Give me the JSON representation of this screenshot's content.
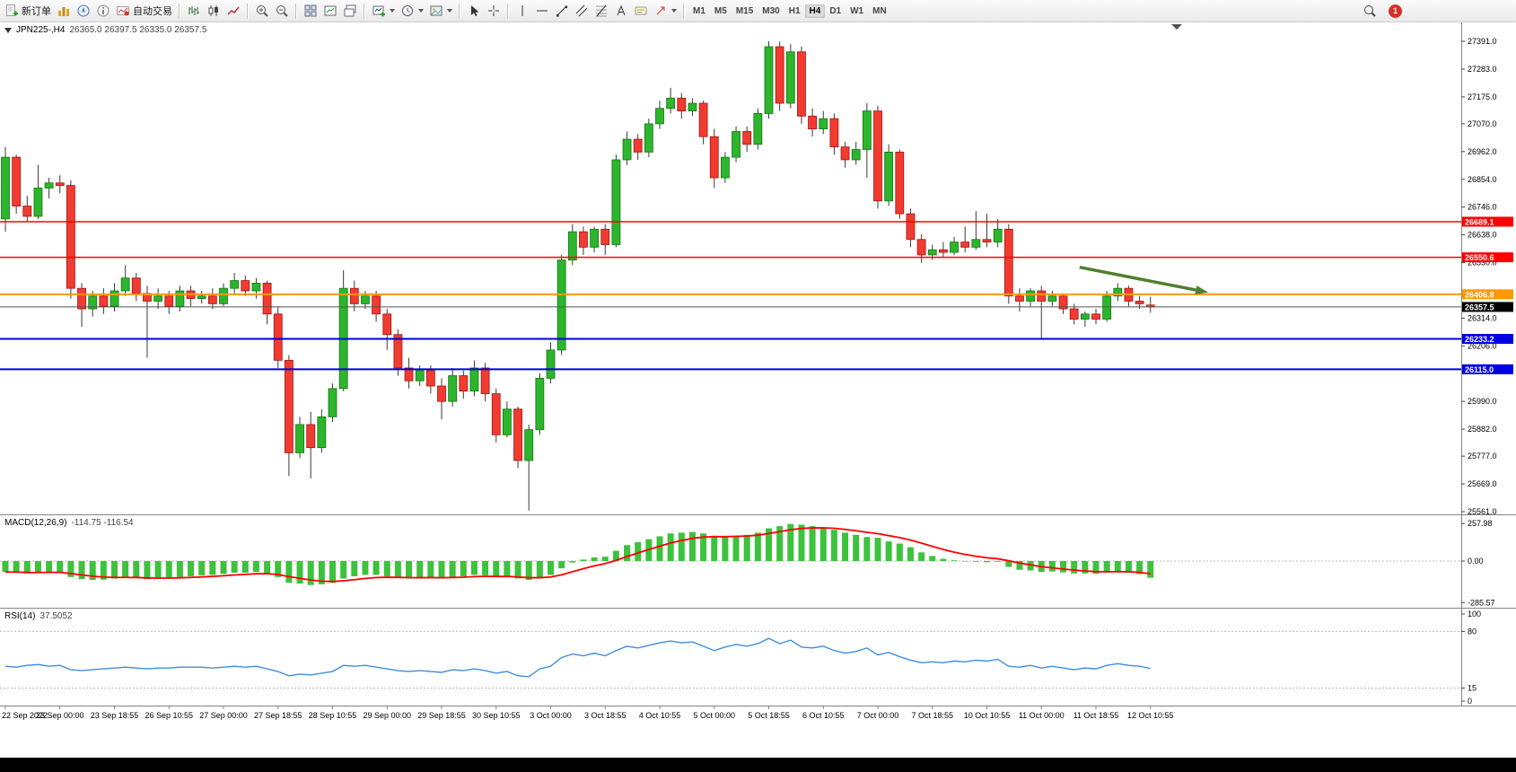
{
  "toolbar": {
    "new_order": {
      "label": "新订单"
    },
    "autotrade": {
      "label": "自动交易"
    },
    "timeframes": [
      "M1",
      "M5",
      "M15",
      "M30",
      "H1",
      "H4",
      "D1",
      "W1",
      "MN"
    ],
    "active_timeframe": "H4",
    "notification_count": "1"
  },
  "chart": {
    "symbol_period": "JPN225-,H4",
    "ohlc_text": "26365.0 26397.5 26335.0 26357.5"
  },
  "chart_data": {
    "type": "candlestick",
    "symbol": "JPN225-",
    "timeframe": "H4",
    "current": {
      "open": 26365.0,
      "high": 26397.5,
      "low": 26335.0,
      "close": 26357.5
    },
    "y_ticks": [
      "27391.0",
      "27283.0",
      "27175.0",
      "27070.0",
      "26962.0",
      "26854.0",
      "26746.0",
      "26638.0",
      "26530.0",
      "26314.0",
      "26206.0",
      "25990.0",
      "25882.0",
      "25777.0",
      "25669.0",
      "25561.0"
    ],
    "x_labels": [
      "22 Sep 2022",
      "23 Sep 00:00",
      "23 Sep 18:55",
      "26 Sep 10:55",
      "27 Sep 00:00",
      "27 Sep 18:55",
      "28 Sep 10:55",
      "29 Sep 00:00",
      "29 Sep 18:55",
      "30 Sep 10:55",
      "3 Oct 00:00",
      "3 Oct 18:55",
      "4 Oct 10:55",
      "5 Oct 00:00",
      "5 Oct 18:55",
      "6 Oct 10:55",
      "7 Oct 00:00",
      "7 Oct 18:55",
      "10 Oct 10:55",
      "11 Oct 00:00",
      "11 Oct 18:55",
      "12 Oct 10:55"
    ],
    "x_label_every": 5,
    "up_fill": "#2DB52D",
    "up_stroke": "#117711",
    "down_fill": "#F23B30",
    "down_stroke": "#A01414",
    "wick_color": "#3a3a3a",
    "hlines": [
      {
        "price": 26689.1,
        "label": "26689.1",
        "color": "#FF0000",
        "width": 1.5
      },
      {
        "price": 26550.6,
        "label": "26550.6",
        "color": "#FF0000",
        "width": 1.5
      },
      {
        "price": 26406.8,
        "label": "26406.8",
        "color": "#FF9900",
        "width": 2
      },
      {
        "price": 26233.2,
        "label": "26233.2",
        "color": "#0000E0",
        "width": 2
      },
      {
        "price": 26115.0,
        "label": "26115.0",
        "color": "#0000E0",
        "width": 2
      }
    ],
    "current_price": 26357.5,
    "current_price_label": "26357.5",
    "current_line_color": "#555555",
    "arrow": {
      "from_index": 98.5,
      "from_price": 26512,
      "to_index": 110.3,
      "to_price": 26414,
      "color": "#4F7F2F"
    },
    "candles": [
      [
        26700,
        26980,
        26650,
        26940
      ],
      [
        26940,
        26950,
        26720,
        26750
      ],
      [
        26750,
        26790,
        26690,
        26710
      ],
      [
        26710,
        26910,
        26700,
        26820
      ],
      [
        26820,
        26860,
        26780,
        26840
      ],
      [
        26840,
        26870,
        26800,
        26830
      ],
      [
        26830,
        26850,
        26390,
        26430
      ],
      [
        26430,
        26450,
        26280,
        26350
      ],
      [
        26350,
        26420,
        26320,
        26400
      ],
      [
        26400,
        26430,
        26330,
        26360
      ],
      [
        26360,
        26450,
        26340,
        26420
      ],
      [
        26420,
        26520,
        26400,
        26470
      ],
      [
        26470,
        26490,
        26380,
        26410
      ],
      [
        26410,
        26440,
        26160,
        26380
      ],
      [
        26380,
        26430,
        26350,
        26400
      ],
      [
        26400,
        26420,
        26330,
        26360
      ],
      [
        26360,
        26440,
        26340,
        26420
      ],
      [
        26420,
        26440,
        26360,
        26390
      ],
      [
        26390,
        26420,
        26370,
        26400
      ],
      [
        26400,
        26430,
        26350,
        26370
      ],
      [
        26370,
        26450,
        26360,
        26430
      ],
      [
        26430,
        26490,
        26410,
        26460
      ],
      [
        26460,
        26480,
        26400,
        26420
      ],
      [
        26420,
        26470,
        26390,
        26450
      ],
      [
        26450,
        26460,
        26290,
        26330
      ],
      [
        26330,
        26360,
        26120,
        26150
      ],
      [
        26150,
        26170,
        25700,
        25790
      ],
      [
        25790,
        25930,
        25770,
        25900
      ],
      [
        25900,
        25950,
        25690,
        25810
      ],
      [
        25810,
        25960,
        25790,
        25930
      ],
      [
        25930,
        26060,
        25910,
        26040
      ],
      [
        26040,
        26500,
        26030,
        26430
      ],
      [
        26430,
        26460,
        26340,
        26370
      ],
      [
        26370,
        26420,
        26350,
        26400
      ],
      [
        26400,
        26420,
        26300,
        26330
      ],
      [
        26330,
        26350,
        26190,
        26250
      ],
      [
        26250,
        26270,
        26090,
        26120
      ],
      [
        26120,
        26160,
        26040,
        26070
      ],
      [
        26070,
        26130,
        26050,
        26110
      ],
      [
        26110,
        26130,
        26020,
        26050
      ],
      [
        26050,
        26080,
        25920,
        25990
      ],
      [
        25990,
        26120,
        25970,
        26090
      ],
      [
        26090,
        26110,
        26000,
        26030
      ],
      [
        26030,
        26150,
        26010,
        26120
      ],
      [
        26120,
        26140,
        25990,
        26020
      ],
      [
        26020,
        26040,
        25830,
        25860
      ],
      [
        25860,
        25990,
        25850,
        25960
      ],
      [
        25960,
        25970,
        25730,
        25760
      ],
      [
        25760,
        25900,
        25565,
        25880
      ],
      [
        25880,
        26100,
        25860,
        26080
      ],
      [
        26080,
        26220,
        26060,
        26190
      ],
      [
        26190,
        26560,
        26170,
        26540
      ],
      [
        26540,
        26680,
        26520,
        26650
      ],
      [
        26650,
        26670,
        26560,
        26590
      ],
      [
        26590,
        26670,
        26570,
        26660
      ],
      [
        26660,
        26680,
        26560,
        26600
      ],
      [
        26600,
        26950,
        26590,
        26930
      ],
      [
        26930,
        27040,
        26910,
        27010
      ],
      [
        27010,
        27030,
        26930,
        26960
      ],
      [
        26960,
        27090,
        26940,
        27070
      ],
      [
        27070,
        27160,
        27050,
        27130
      ],
      [
        27130,
        27210,
        27110,
        27170
      ],
      [
        27170,
        27190,
        27090,
        27120
      ],
      [
        27120,
        27170,
        27100,
        27150
      ],
      [
        27150,
        27160,
        26990,
        27020
      ],
      [
        27020,
        27050,
        26820,
        26860
      ],
      [
        26860,
        26960,
        26840,
        26940
      ],
      [
        26940,
        27060,
        26920,
        27040
      ],
      [
        27040,
        27060,
        26960,
        26990
      ],
      [
        26990,
        27130,
        26970,
        27110
      ],
      [
        27110,
        27391,
        27090,
        27370
      ],
      [
        27370,
        27390,
        27120,
        27150
      ],
      [
        27150,
        27380,
        27130,
        27350
      ],
      [
        27350,
        27370,
        27070,
        27100
      ],
      [
        27100,
        27130,
        27020,
        27050
      ],
      [
        27050,
        27120,
        27030,
        27090
      ],
      [
        27090,
        27110,
        26950,
        26980
      ],
      [
        26980,
        27000,
        26900,
        26930
      ],
      [
        26930,
        27000,
        26910,
        26970
      ],
      [
        26970,
        27150,
        26860,
        27120
      ],
      [
        27120,
        27140,
        26740,
        26770
      ],
      [
        26770,
        26990,
        26750,
        26960
      ],
      [
        26960,
        26970,
        26700,
        26720
      ],
      [
        26720,
        26740,
        26590,
        26620
      ],
      [
        26620,
        26640,
        26530,
        26560
      ],
      [
        26560,
        26600,
        26540,
        26580
      ],
      [
        26580,
        26610,
        26550,
        26570
      ],
      [
        26570,
        26630,
        26560,
        26610
      ],
      [
        26610,
        26670,
        26570,
        26590
      ],
      [
        26590,
        26730,
        26580,
        26620
      ],
      [
        26620,
        26720,
        26590,
        26610
      ],
      [
        26610,
        26700,
        26590,
        26660
      ],
      [
        26660,
        26680,
        26370,
        26400
      ],
      [
        26400,
        26430,
        26340,
        26380
      ],
      [
        26380,
        26430,
        26360,
        26420
      ],
      [
        26420,
        26440,
        26230,
        26380
      ],
      [
        26380,
        26420,
        26360,
        26400
      ],
      [
        26400,
        26410,
        26330,
        26350
      ],
      [
        26350,
        26370,
        26290,
        26310
      ],
      [
        26310,
        26340,
        26280,
        26330
      ],
      [
        26330,
        26350,
        26290,
        26310
      ],
      [
        26310,
        26420,
        26300,
        26400
      ],
      [
        26400,
        26450,
        26380,
        26430
      ],
      [
        26430,
        26440,
        26360,
        26380
      ],
      [
        26380,
        26400,
        26350,
        26370
      ],
      [
        26365,
        26397.5,
        26335,
        26357.5
      ]
    ],
    "macd": {
      "name": "MACD(12,26,9)",
      "values": "-114.75 -116.54",
      "axis": [
        "257.98",
        "0.00",
        "-285.57"
      ],
      "histogram_color": "#3CC23C",
      "signal_color": "#FF0000",
      "histogram": [
        -75,
        -80,
        -85,
        -80,
        -75,
        -78,
        -110,
        -125,
        -130,
        -128,
        -120,
        -112,
        -115,
        -125,
        -120,
        -118,
        -110,
        -105,
        -98,
        -95,
        -88,
        -80,
        -80,
        -75,
        -85,
        -110,
        -150,
        -155,
        -165,
        -160,
        -150,
        -120,
        -105,
        -95,
        -95,
        -105,
        -115,
        -120,
        -115,
        -112,
        -118,
        -108,
        -105,
        -95,
        -98,
        -110,
        -105,
        -120,
        -130,
        -115,
        -95,
        -50,
        -10,
        10,
        25,
        30,
        70,
        110,
        130,
        150,
        170,
        190,
        195,
        200,
        190,
        175,
        170,
        175,
        180,
        195,
        225,
        240,
        255,
        250,
        240,
        230,
        215,
        195,
        180,
        165,
        160,
        135,
        120,
        95,
        60,
        35,
        15,
        5,
        0,
        -5,
        -8,
        -5,
        -40,
        -60,
        -65,
        -75,
        -72,
        -78,
        -85,
        -85,
        -88,
        -78,
        -70,
        -75,
        -90,
        -114.75
      ]
    },
    "rsi": {
      "name": "RSI(14)",
      "value": "37.5052",
      "axis": [
        "100",
        "80",
        "15",
        "0"
      ],
      "levels": [
        80,
        15
      ],
      "color": "#3E8EDE",
      "values": [
        40,
        39,
        41,
        42,
        40,
        41,
        36,
        35,
        36,
        37,
        38,
        39,
        38,
        37,
        38,
        38,
        39,
        39,
        39,
        38,
        39,
        40,
        39,
        40,
        37,
        34,
        29,
        31,
        30,
        32,
        34,
        41,
        40,
        41,
        39,
        37,
        35,
        34,
        35,
        34,
        33,
        36,
        35,
        37,
        35,
        32,
        34,
        29,
        28,
        37,
        40,
        50,
        54,
        52,
        55,
        52,
        58,
        63,
        61,
        64,
        67,
        69,
        67,
        68,
        63,
        58,
        62,
        65,
        63,
        66,
        72,
        66,
        70,
        62,
        61,
        63,
        58,
        55,
        57,
        61,
        53,
        56,
        51,
        47,
        44,
        45,
        44,
        46,
        45,
        47,
        46,
        48,
        40,
        39,
        41,
        38,
        40,
        38,
        36,
        38,
        37,
        41,
        43,
        41,
        40,
        37.5
      ]
    }
  }
}
